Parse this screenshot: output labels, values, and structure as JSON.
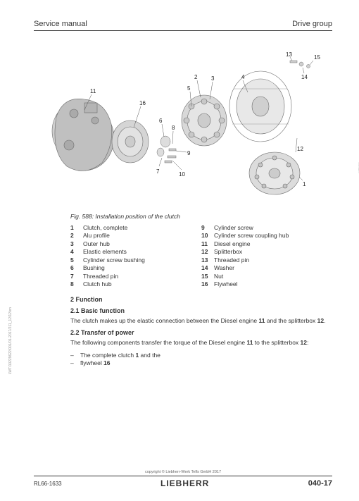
{
  "header": {
    "left": "Service manual",
    "right": "Drive group"
  },
  "figure": {
    "side_code": "435130",
    "caption": "Fig. 588: Installation position of the clutch",
    "callouts": [
      "1",
      "2",
      "3",
      "4",
      "5",
      "6",
      "7",
      "8",
      "9",
      "10",
      "11",
      "12",
      "13",
      "14",
      "15",
      "16"
    ],
    "stroke": "#7a7a7a",
    "fill": "#d8d8d8"
  },
  "legend": {
    "col1": [
      {
        "n": "1",
        "t": "Clutch, complete"
      },
      {
        "n": "2",
        "t": "Alu profile"
      },
      {
        "n": "3",
        "t": "Outer hub"
      },
      {
        "n": "4",
        "t": "Elastic elements"
      },
      {
        "n": "5",
        "t": "Cylinder screw bushing"
      },
      {
        "n": "6",
        "t": "Bushing"
      },
      {
        "n": "7",
        "t": "Threaded pin"
      },
      {
        "n": "8",
        "t": "Clutch hub"
      }
    ],
    "col2": [
      {
        "n": "9",
        "t": "Cylinder screw"
      },
      {
        "n": "10",
        "t": "Cylinder screw coupling hub"
      },
      {
        "n": "11",
        "t": "Diesel engine"
      },
      {
        "n": "12",
        "t": "Splitterbox"
      },
      {
        "n": "13",
        "t": "Threaded pin"
      },
      {
        "n": "14",
        "t": "Washer"
      },
      {
        "n": "15",
        "t": "Nut"
      },
      {
        "n": "16",
        "t": "Flywheel"
      }
    ]
  },
  "sections": {
    "s2": "2 Function",
    "s21": "2.1 Basic function",
    "s21_text_a": "The clutch makes up the elastic connection between the Diesel engine ",
    "s21_b1": "11",
    "s21_text_b": " and the splitterbox ",
    "s21_b2": "12",
    "s21_text_c": ".",
    "s22": "2.2 Transfer of power",
    "s22_text_a": "The following components transfer the torque of the Diesel engine ",
    "s22_b1": "11",
    "s22_text_b": " to the splitterbox ",
    "s22_b2": "12",
    "s22_text_c": ":",
    "bullets": [
      {
        "pre": "The complete clutch ",
        "b": "1",
        "post": " and the"
      },
      {
        "pre": "flywheel ",
        "b": "16",
        "post": ""
      }
    ]
  },
  "footer": {
    "copyright": "copyright © Liebherr-Werk Telfs GmbH 2017",
    "doc_num": "RL66-1633",
    "brand": "LIEBHERR",
    "page": "040-17",
    "vertical": "LWT/10229622/001/01-2017/211_12/12/en"
  }
}
